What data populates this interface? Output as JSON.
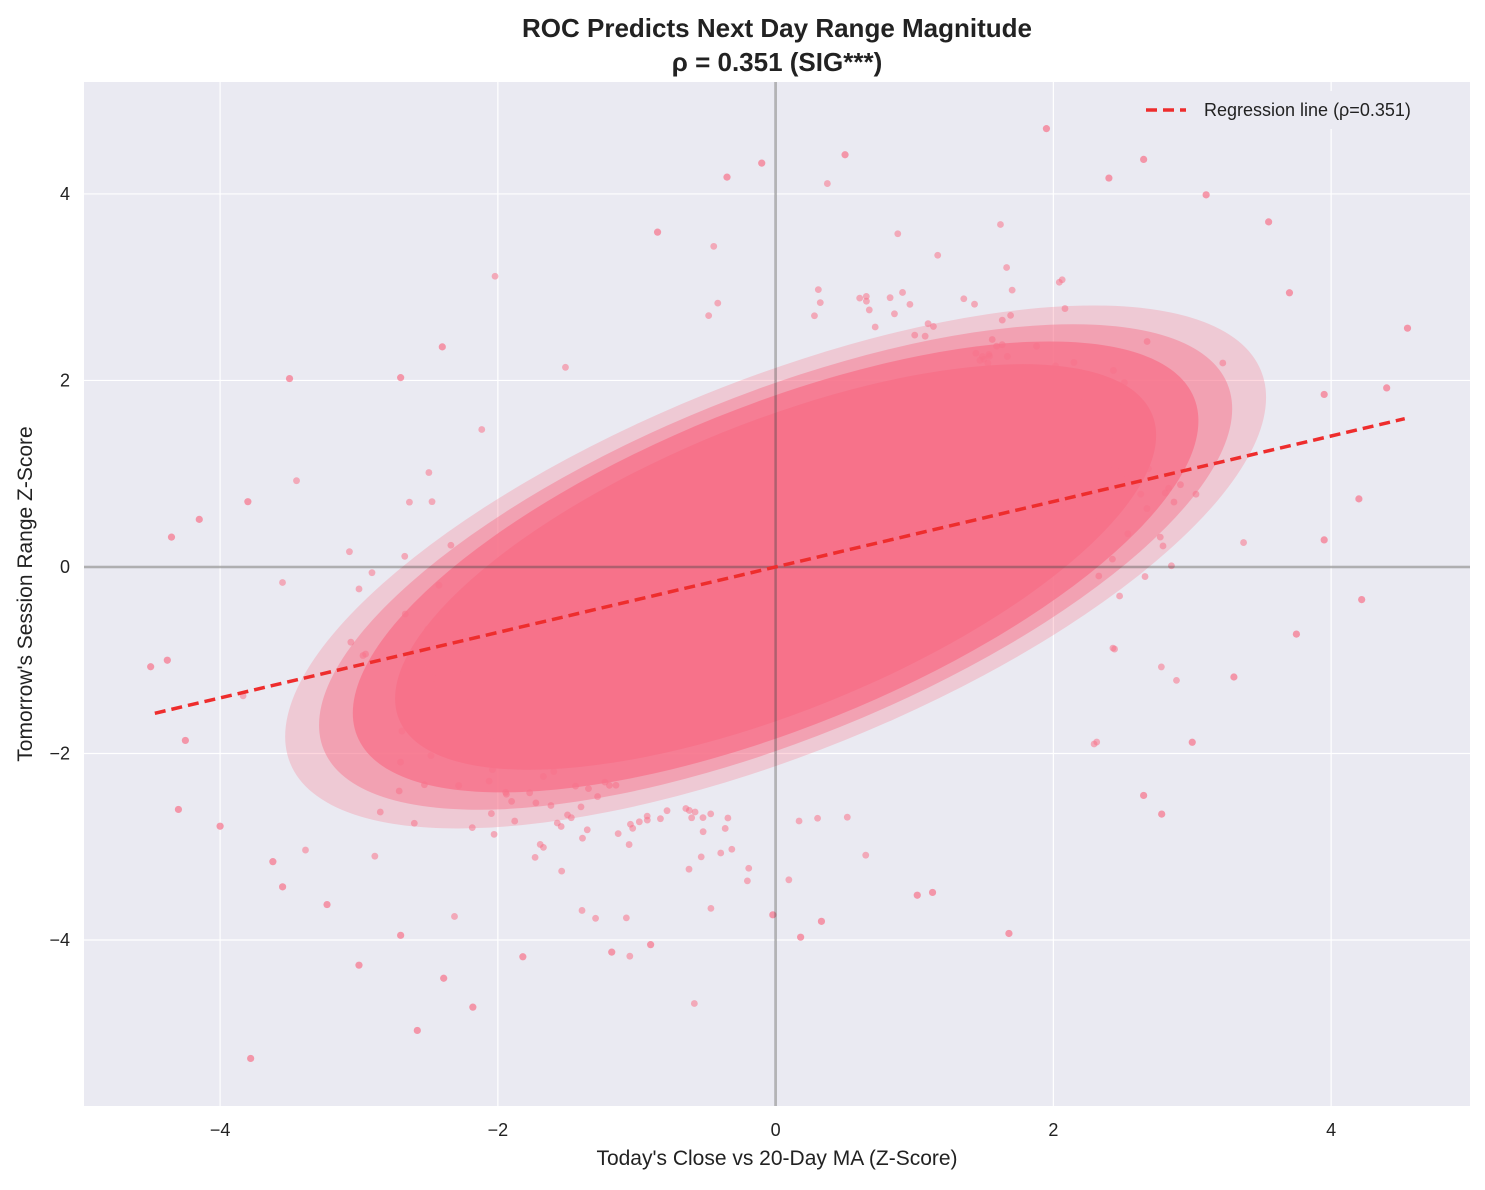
{
  "chart_data": {
    "type": "scatter",
    "title": "ROC Predicts Next Day Range Magnitude",
    "subtitle": "ρ = 0.351 (SIG***)",
    "xlabel": "Today's Close vs 20-Day MA (Z-Score)",
    "ylabel": "Tomorrow's Session Range Z-Score",
    "xlim": [
      -4.98,
      5.0
    ],
    "ylim": [
      -5.78,
      5.2
    ],
    "xticks": [
      -4,
      -2,
      0,
      2,
      4
    ],
    "yticks": [
      -4,
      -2,
      0,
      2,
      4
    ],
    "x_tick_labels": [
      "−4",
      "−2",
      "0",
      "2",
      "4"
    ],
    "y_tick_labels": [
      "−4",
      "−2",
      "0",
      "2",
      "4"
    ],
    "grid": true,
    "legend_position": "top-right",
    "reference_lines": {
      "x": 0,
      "y": 0
    },
    "series": [
      {
        "role": "scatter",
        "color": "#f7728a",
        "point_count_note": "dense bivariate cloud, correlation ≈ 0.35",
        "outliers": [
          [
            -3.78,
            -5.27
          ],
          [
            -2.58,
            -4.97
          ],
          [
            -2.18,
            -4.72
          ],
          [
            -2.39,
            -4.41
          ],
          [
            -3.0,
            -4.27
          ],
          [
            -1.82,
            -4.18
          ],
          [
            -1.18,
            -4.13
          ],
          [
            -0.9,
            -4.05
          ],
          [
            0.18,
            -3.97
          ],
          [
            1.68,
            -3.93
          ],
          [
            -2.7,
            -3.95
          ],
          [
            -4.3,
            -2.6
          ],
          [
            -4.0,
            -2.78
          ],
          [
            -4.25,
            -1.86
          ],
          [
            -4.38,
            -1.0
          ],
          [
            -4.5,
            -1.07
          ],
          [
            -4.35,
            0.32
          ],
          [
            -4.15,
            0.51
          ],
          [
            -3.8,
            0.7
          ],
          [
            -3.5,
            2.02
          ],
          [
            -2.4,
            2.36
          ],
          [
            -2.7,
            2.03
          ],
          [
            -0.85,
            3.59
          ],
          [
            -0.35,
            4.18
          ],
          [
            -0.1,
            4.33
          ],
          [
            0.5,
            4.42
          ],
          [
            1.95,
            4.7
          ],
          [
            2.65,
            4.37
          ],
          [
            2.4,
            4.17
          ],
          [
            3.1,
            3.99
          ],
          [
            3.55,
            3.7
          ],
          [
            3.7,
            2.94
          ],
          [
            4.55,
            2.56
          ],
          [
            4.4,
            1.92
          ],
          [
            3.95,
            1.85
          ],
          [
            4.2,
            0.73
          ],
          [
            3.95,
            0.29
          ],
          [
            4.22,
            -0.35
          ],
          [
            3.75,
            -0.72
          ],
          [
            3.3,
            -1.18
          ],
          [
            3.0,
            -1.88
          ],
          [
            2.78,
            -2.65
          ],
          [
            2.65,
            -2.45
          ],
          [
            0.33,
            -3.8
          ],
          [
            -0.02,
            -3.73
          ],
          [
            1.13,
            -3.49
          ],
          [
            1.02,
            -3.52
          ],
          [
            -3.55,
            -3.43
          ],
          [
            -3.23,
            -3.62
          ],
          [
            -3.62,
            -3.16
          ]
        ]
      },
      {
        "role": "regression",
        "name": "Regression line (ρ=0.351)",
        "color": "#ee2d2d",
        "style": "dashed",
        "slope": 0.351,
        "intercept": 0,
        "x_range": [
          -4.47,
          4.53
        ]
      }
    ]
  }
}
